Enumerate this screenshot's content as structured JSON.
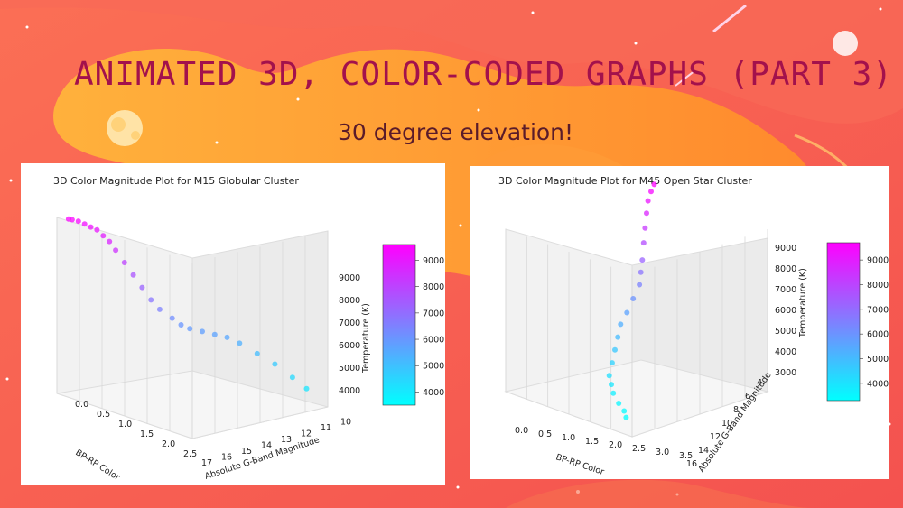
{
  "slide": {
    "title": "ANIMATED 3D, COLOR-CODED GRAPHS (PART 3)",
    "subtitle": "30 degree elevation!"
  },
  "colors": {
    "background": "#f55a4e",
    "title": "#a3114c",
    "colormap_low": "#00ffff",
    "colormap_high": "#ff00ff"
  },
  "chart_data": [
    {
      "type": "scatter",
      "title": "3D Color Magnitude Plot for M15 Globular Cluster",
      "xlabel": "BP-RP Color",
      "ylabel": "Absolute G-Band Magnitude",
      "zlabel": "Temperature (K)",
      "x_ticks": [
        "0.0",
        "0.5",
        "1.0",
        "1.5",
        "2.0",
        "2.5"
      ],
      "y_ticks": [
        "17",
        "16",
        "15",
        "14",
        "13",
        "12",
        "11",
        "10"
      ],
      "z_ticks": [
        "4000",
        "5000",
        "6000",
        "7000",
        "8000",
        "9000"
      ],
      "colorbar_ticks": [
        "4000",
        "5000",
        "6000",
        "7000",
        "8000",
        "9000"
      ],
      "colorbar_range": [
        3500,
        9600
      ],
      "elevation_deg": 30,
      "points": [
        {
          "x": 0.05,
          "y": 16.8,
          "z": 9500
        },
        {
          "x": 0.05,
          "y": 16.6,
          "z": 9450
        },
        {
          "x": 0.1,
          "y": 16.4,
          "z": 9400
        },
        {
          "x": 0.15,
          "y": 16.2,
          "z": 9300
        },
        {
          "x": 0.2,
          "y": 16.0,
          "z": 9200
        },
        {
          "x": 0.25,
          "y": 15.8,
          "z": 9100
        },
        {
          "x": 0.3,
          "y": 15.6,
          "z": 8900
        },
        {
          "x": 0.35,
          "y": 15.4,
          "z": 8700
        },
        {
          "x": 0.4,
          "y": 15.2,
          "z": 8400
        },
        {
          "x": 0.5,
          "y": 15.0,
          "z": 8000
        },
        {
          "x": 0.6,
          "y": 14.8,
          "z": 7600
        },
        {
          "x": 0.7,
          "y": 14.6,
          "z": 7200
        },
        {
          "x": 0.8,
          "y": 14.4,
          "z": 6800
        },
        {
          "x": 0.9,
          "y": 14.2,
          "z": 6500
        },
        {
          "x": 1.0,
          "y": 13.8,
          "z": 6200
        },
        {
          "x": 1.1,
          "y": 13.6,
          "z": 6000
        },
        {
          "x": 1.2,
          "y": 13.4,
          "z": 5900
        },
        {
          "x": 1.3,
          "y": 13.0,
          "z": 5800
        },
        {
          "x": 1.4,
          "y": 12.6,
          "z": 5700
        },
        {
          "x": 1.5,
          "y": 12.2,
          "z": 5600
        },
        {
          "x": 1.6,
          "y": 11.8,
          "z": 5400
        },
        {
          "x": 1.8,
          "y": 11.4,
          "z": 5100
        },
        {
          "x": 2.0,
          "y": 11.0,
          "z": 4800
        },
        {
          "x": 2.2,
          "y": 10.6,
          "z": 4400
        },
        {
          "x": 2.4,
          "y": 10.4,
          "z": 4100
        }
      ]
    },
    {
      "type": "scatter",
      "title": "3D Color Magnitude Plot for M45 Open Star Cluster",
      "xlabel": "BP-RP Color",
      "ylabel": "Absolute G-Band Magnitude",
      "zlabel": "Temperature (K)",
      "x_ticks": [
        "0.0",
        "0.5",
        "1.0",
        "1.5",
        "2.0",
        "2.5",
        "3.0",
        "3.5"
      ],
      "y_ticks": [
        "16",
        "14",
        "12",
        "10",
        "8",
        "6",
        "4"
      ],
      "z_ticks": [
        "3000",
        "4000",
        "5000",
        "6000",
        "7000",
        "8000",
        "9000"
      ],
      "colorbar_ticks": [
        "4000",
        "5000",
        "6000",
        "7000",
        "8000",
        "9000"
      ],
      "colorbar_range": [
        3300,
        9700
      ],
      "elevation_deg": 30,
      "points": [
        {
          "x": 0.0,
          "y": 2.0,
          "z": 9700
        },
        {
          "x": 0.05,
          "y": 2.5,
          "z": 9500
        },
        {
          "x": 0.1,
          "y": 3.0,
          "z": 9200
        },
        {
          "x": 0.2,
          "y": 3.5,
          "z": 8800
        },
        {
          "x": 0.3,
          "y": 4.0,
          "z": 8300
        },
        {
          "x": 0.4,
          "y": 4.5,
          "z": 7800
        },
        {
          "x": 0.5,
          "y": 5.0,
          "z": 7200
        },
        {
          "x": 0.6,
          "y": 5.5,
          "z": 6800
        },
        {
          "x": 0.7,
          "y": 6.0,
          "z": 6400
        },
        {
          "x": 0.8,
          "y": 7.0,
          "z": 6000
        },
        {
          "x": 0.9,
          "y": 8.0,
          "z": 5600
        },
        {
          "x": 1.0,
          "y": 9.0,
          "z": 5300
        },
        {
          "x": 1.2,
          "y": 10.0,
          "z": 5000
        },
        {
          "x": 1.4,
          "y": 11.0,
          "z": 4700
        },
        {
          "x": 1.6,
          "y": 12.0,
          "z": 4400
        },
        {
          "x": 1.8,
          "y": 13.0,
          "z": 4100
        },
        {
          "x": 2.0,
          "y": 13.5,
          "z": 3900
        },
        {
          "x": 2.2,
          "y": 14.0,
          "z": 3700
        },
        {
          "x": 2.5,
          "y": 14.5,
          "z": 3500
        },
        {
          "x": 2.8,
          "y": 15.0,
          "z": 3400
        },
        {
          "x": 3.0,
          "y": 15.5,
          "z": 3300
        }
      ]
    }
  ]
}
